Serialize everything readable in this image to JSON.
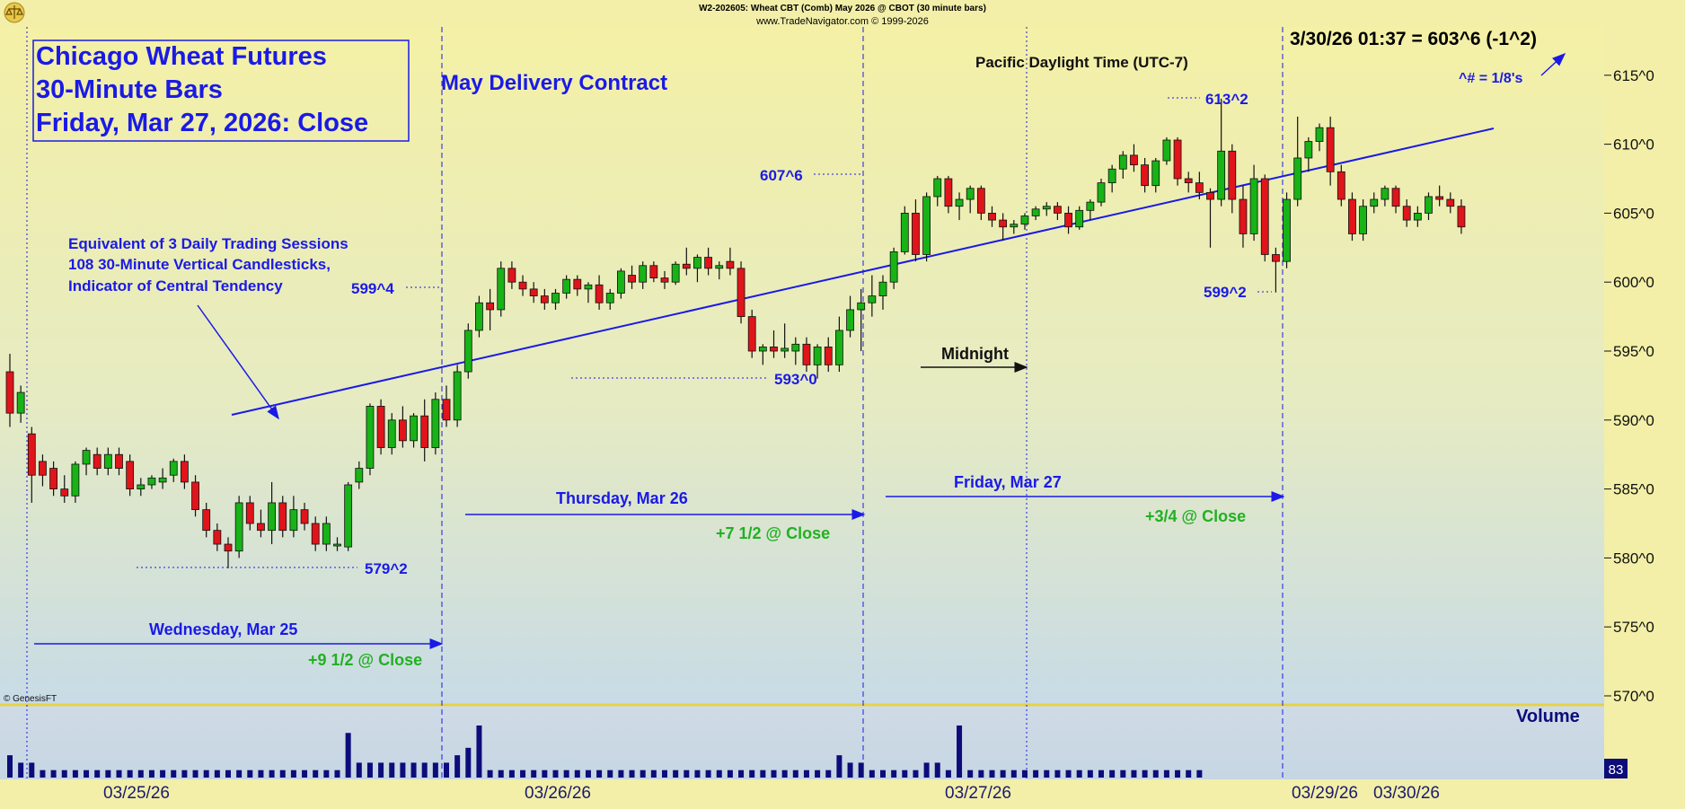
{
  "header": {
    "line1": "W2-202605:  Wheat CBT (Comb) May 2026 @ CBOT  (30 minute bars)",
    "line2": "www.TradeNavigator.com © 1999-2026",
    "quote": "3/30/26 01:37 = 603^6 (-1^2)",
    "fraction_note": "^# = 1/8's",
    "genesis": "© GenesisFT",
    "volume_label": "Volume",
    "volume_last": "83"
  },
  "title_box": {
    "line1": "Chicago Wheat Futures",
    "line2": "30-Minute Bars",
    "line3": "Friday, Mar 27, 2026: Close"
  },
  "annotations": {
    "contract": "May Delivery Contract",
    "timezone": "Pacific Daylight Time (UTC-7)",
    "midnight": "Midnight",
    "sessions1": "Equivalent of 3 Daily Trading Sessions",
    "sessions2": "108 30-Minute Vertical Candlesticks,",
    "sessions3": "Indicator of Central Tendency",
    "day_wed": "Wednesday, Mar 25",
    "day_thu": "Thursday, Mar 26",
    "day_fri": "Friday, Mar 27",
    "close_wed": "+9 1/2 @ Close",
    "close_thu": "+7 1/2 @ Close",
    "close_fri": "+3/4 @ Close",
    "lvl_5792": "579^2",
    "lvl_5994": "599^4",
    "lvl_5930": "593^0",
    "lvl_6076": "607^6",
    "lvl_6132": "613^2",
    "lvl_5992": "599^2"
  },
  "colors": {
    "up": "#17b317",
    "down": "#e0141a",
    "ink": "#1a1ae6",
    "green_text": "#22b022",
    "volume": "#0c0c7a",
    "bg_top": "#f3efa8",
    "bg_bottom": "#c7dbe8"
  },
  "chart_data": {
    "type": "candlestick",
    "y_ticks": [
      "570^0",
      "575^0",
      "580^0",
      "585^0",
      "590^0",
      "595^0",
      "600^0",
      "605^0",
      "610^0",
      "615^0"
    ],
    "ylim": [
      568,
      618
    ],
    "x_ticks": [
      "03/25/26",
      "03/26/26",
      "03/27/26",
      "03/29/26",
      "03/30/26"
    ],
    "trendline": [
      [
        0,
        590.0
      ],
      [
        108,
        611.0
      ]
    ],
    "candles": [
      {
        "o": 593.5,
        "h": 594.8,
        "l": 589.5,
        "c": 590.5
      },
      {
        "o": 590.5,
        "h": 592.5,
        "l": 589.8,
        "c": 592.0
      },
      {
        "o": 589.0,
        "h": 589.5,
        "l": 584.0,
        "c": 586.0
      },
      {
        "o": 587.0,
        "h": 587.5,
        "l": 585.2,
        "c": 586.0
      },
      {
        "o": 586.5,
        "h": 587.0,
        "l": 584.5,
        "c": 585.0
      },
      {
        "o": 585.0,
        "h": 586.0,
        "l": 584.0,
        "c": 584.5
      },
      {
        "o": 584.5,
        "h": 587.0,
        "l": 584.0,
        "c": 586.8
      },
      {
        "o": 586.8,
        "h": 588.0,
        "l": 586.0,
        "c": 587.8
      },
      {
        "o": 587.5,
        "h": 588.0,
        "l": 586.0,
        "c": 586.5
      },
      {
        "o": 586.5,
        "h": 588.0,
        "l": 586.0,
        "c": 587.5
      },
      {
        "o": 587.5,
        "h": 588.0,
        "l": 586.0,
        "c": 586.5
      },
      {
        "o": 587.0,
        "h": 587.5,
        "l": 584.5,
        "c": 585.0
      },
      {
        "o": 585.0,
        "h": 585.8,
        "l": 584.5,
        "c": 585.3
      },
      {
        "o": 585.3,
        "h": 586.0,
        "l": 585.0,
        "c": 585.8
      },
      {
        "o": 585.5,
        "h": 586.5,
        "l": 585.0,
        "c": 585.8
      },
      {
        "o": 586.0,
        "h": 587.2,
        "l": 585.5,
        "c": 587.0
      },
      {
        "o": 587.0,
        "h": 587.5,
        "l": 585.0,
        "c": 585.5
      },
      {
        "o": 585.5,
        "h": 586.0,
        "l": 583.0,
        "c": 583.5
      },
      {
        "o": 583.5,
        "h": 584.0,
        "l": 581.5,
        "c": 582.0
      },
      {
        "o": 582.0,
        "h": 582.5,
        "l": 580.5,
        "c": 581.0
      },
      {
        "o": 581.0,
        "h": 581.5,
        "l": 579.25,
        "c": 580.5
      },
      {
        "o": 580.5,
        "h": 584.5,
        "l": 580.0,
        "c": 584.0
      },
      {
        "o": 584.0,
        "h": 584.5,
        "l": 582.0,
        "c": 582.5
      },
      {
        "o": 582.5,
        "h": 583.5,
        "l": 581.5,
        "c": 582.0
      },
      {
        "o": 582.0,
        "h": 585.5,
        "l": 581.0,
        "c": 584.0
      },
      {
        "o": 584.0,
        "h": 584.5,
        "l": 581.5,
        "c": 582.0
      },
      {
        "o": 582.0,
        "h": 584.5,
        "l": 581.5,
        "c": 583.5
      },
      {
        "o": 583.5,
        "h": 584.0,
        "l": 582.0,
        "c": 582.5
      },
      {
        "o": 582.5,
        "h": 583.0,
        "l": 580.5,
        "c": 581.0
      },
      {
        "o": 581.0,
        "h": 583.0,
        "l": 580.5,
        "c": 582.5
      },
      {
        "o": 581.0,
        "h": 581.5,
        "l": 580.5,
        "c": 581.0
      },
      {
        "o": 580.8,
        "h": 585.5,
        "l": 580.5,
        "c": 585.3
      },
      {
        "o": 585.5,
        "h": 587.0,
        "l": 585.0,
        "c": 586.5
      },
      {
        "o": 586.5,
        "h": 591.2,
        "l": 586.0,
        "c": 591.0
      },
      {
        "o": 591.0,
        "h": 591.5,
        "l": 587.5,
        "c": 588.0
      },
      {
        "o": 588.0,
        "h": 590.5,
        "l": 587.5,
        "c": 590.0
      },
      {
        "o": 590.0,
        "h": 591.0,
        "l": 588.0,
        "c": 588.5
      },
      {
        "o": 588.5,
        "h": 590.5,
        "l": 588.0,
        "c": 590.3
      },
      {
        "o": 590.3,
        "h": 591.5,
        "l": 587.0,
        "c": 588.0
      },
      {
        "o": 588.0,
        "h": 592.0,
        "l": 587.5,
        "c": 591.5
      },
      {
        "o": 591.5,
        "h": 592.5,
        "l": 589.5,
        "c": 590.0
      },
      {
        "o": 590.0,
        "h": 594.0,
        "l": 589.5,
        "c": 593.5
      },
      {
        "o": 593.5,
        "h": 597.0,
        "l": 593.0,
        "c": 596.5
      },
      {
        "o": 596.5,
        "h": 599.0,
        "l": 596.0,
        "c": 598.5
      },
      {
        "o": 598.5,
        "h": 599.5,
        "l": 596.5,
        "c": 598.0
      },
      {
        "o": 598.0,
        "h": 601.5,
        "l": 597.5,
        "c": 601.0
      },
      {
        "o": 601.0,
        "h": 601.5,
        "l": 599.5,
        "c": 600.0
      },
      {
        "o": 600.0,
        "h": 600.5,
        "l": 599.0,
        "c": 599.5
      },
      {
        "o": 599.5,
        "h": 600.0,
        "l": 598.5,
        "c": 599.0
      },
      {
        "o": 599.0,
        "h": 599.5,
        "l": 598.0,
        "c": 598.5
      },
      {
        "o": 598.5,
        "h": 599.5,
        "l": 598.0,
        "c": 599.2
      },
      {
        "o": 599.2,
        "h": 600.5,
        "l": 598.8,
        "c": 600.2
      },
      {
        "o": 600.2,
        "h": 600.5,
        "l": 599.0,
        "c": 599.5
      },
      {
        "o": 599.5,
        "h": 600.0,
        "l": 598.5,
        "c": 599.8
      },
      {
        "o": 599.8,
        "h": 600.5,
        "l": 598.0,
        "c": 598.5
      },
      {
        "o": 598.5,
        "h": 599.5,
        "l": 598.0,
        "c": 599.2
      },
      {
        "o": 599.2,
        "h": 601.0,
        "l": 598.8,
        "c": 600.8
      },
      {
        "o": 600.5,
        "h": 601.2,
        "l": 599.5,
        "c": 600.0
      },
      {
        "o": 600.0,
        "h": 601.5,
        "l": 599.5,
        "c": 601.2
      },
      {
        "o": 601.2,
        "h": 601.5,
        "l": 600.0,
        "c": 600.3
      },
      {
        "o": 600.3,
        "h": 600.8,
        "l": 599.5,
        "c": 600.0
      },
      {
        "o": 600.0,
        "h": 601.5,
        "l": 599.8,
        "c": 601.3
      },
      {
        "o": 601.3,
        "h": 602.5,
        "l": 600.5,
        "c": 601.0
      },
      {
        "o": 601.0,
        "h": 602.0,
        "l": 600.0,
        "c": 601.8
      },
      {
        "o": 601.8,
        "h": 602.5,
        "l": 600.5,
        "c": 601.0
      },
      {
        "o": 601.0,
        "h": 601.5,
        "l": 600.2,
        "c": 601.2
      },
      {
        "o": 601.5,
        "h": 602.5,
        "l": 600.5,
        "c": 601.0
      },
      {
        "o": 601.0,
        "h": 601.5,
        "l": 597.0,
        "c": 597.5
      },
      {
        "o": 597.5,
        "h": 598.0,
        "l": 594.5,
        "c": 595.0
      },
      {
        "o": 595.0,
        "h": 595.5,
        "l": 594.0,
        "c": 595.3
      },
      {
        "o": 595.3,
        "h": 596.5,
        "l": 594.5,
        "c": 595.0
      },
      {
        "o": 595.0,
        "h": 597.0,
        "l": 594.5,
        "c": 595.2
      },
      {
        "o": 595.0,
        "h": 596.0,
        "l": 594.0,
        "c": 595.5
      },
      {
        "o": 595.5,
        "h": 596.0,
        "l": 593.5,
        "c": 594.0
      },
      {
        "o": 594.0,
        "h": 595.5,
        "l": 593.0,
        "c": 595.3
      },
      {
        "o": 595.3,
        "h": 596.0,
        "l": 593.5,
        "c": 594.0
      },
      {
        "o": 594.0,
        "h": 597.5,
        "l": 593.5,
        "c": 596.5
      },
      {
        "o": 596.5,
        "h": 599.0,
        "l": 596.0,
        "c": 598.0
      },
      {
        "o": 598.0,
        "h": 599.5,
        "l": 595.0,
        "c": 598.5
      },
      {
        "o": 598.5,
        "h": 600.5,
        "l": 597.5,
        "c": 599.0
      },
      {
        "o": 599.0,
        "h": 600.5,
        "l": 598.0,
        "c": 600.0
      },
      {
        "o": 600.0,
        "h": 602.5,
        "l": 599.5,
        "c": 602.2
      },
      {
        "o": 602.2,
        "h": 605.5,
        "l": 602.0,
        "c": 605.0
      },
      {
        "o": 605.0,
        "h": 606.0,
        "l": 601.5,
        "c": 602.0
      },
      {
        "o": 602.0,
        "h": 606.5,
        "l": 601.5,
        "c": 606.2
      },
      {
        "o": 606.2,
        "h": 607.7,
        "l": 605.5,
        "c": 607.5
      },
      {
        "o": 607.5,
        "h": 607.7,
        "l": 605.0,
        "c": 605.5
      },
      {
        "o": 605.5,
        "h": 606.5,
        "l": 604.5,
        "c": 606.0
      },
      {
        "o": 606.0,
        "h": 607.0,
        "l": 605.0,
        "c": 606.8
      },
      {
        "o": 606.8,
        "h": 607.0,
        "l": 604.5,
        "c": 605.0
      },
      {
        "o": 605.0,
        "h": 605.5,
        "l": 604.0,
        "c": 604.5
      },
      {
        "o": 604.5,
        "h": 605.0,
        "l": 603.0,
        "c": 604.0
      },
      {
        "o": 604.0,
        "h": 604.5,
        "l": 603.5,
        "c": 604.2
      },
      {
        "o": 604.2,
        "h": 605.0,
        "l": 603.8,
        "c": 604.8
      },
      {
        "o": 604.8,
        "h": 605.5,
        "l": 604.5,
        "c": 605.3
      },
      {
        "o": 605.3,
        "h": 605.8,
        "l": 604.8,
        "c": 605.5
      },
      {
        "o": 605.5,
        "h": 605.8,
        "l": 604.5,
        "c": 605.0
      },
      {
        "o": 605.0,
        "h": 605.5,
        "l": 603.5,
        "c": 604.0
      },
      {
        "o": 604.0,
        "h": 605.5,
        "l": 603.8,
        "c": 605.2
      },
      {
        "o": 605.2,
        "h": 606.0,
        "l": 604.5,
        "c": 605.8
      },
      {
        "o": 605.8,
        "h": 607.5,
        "l": 605.5,
        "c": 607.2
      },
      {
        "o": 607.2,
        "h": 608.5,
        "l": 606.5,
        "c": 608.2
      },
      {
        "o": 608.2,
        "h": 609.5,
        "l": 607.5,
        "c": 609.2
      },
      {
        "o": 609.2,
        "h": 610.0,
        "l": 608.0,
        "c": 608.5
      },
      {
        "o": 608.5,
        "h": 609.0,
        "l": 606.5,
        "c": 607.0
      },
      {
        "o": 607.0,
        "h": 609.0,
        "l": 606.5,
        "c": 608.8
      },
      {
        "o": 608.8,
        "h": 610.5,
        "l": 608.5,
        "c": 610.3
      },
      {
        "o": 610.3,
        "h": 610.5,
        "l": 607.0,
        "c": 607.5
      },
      {
        "o": 607.5,
        "h": 608.0,
        "l": 606.5,
        "c": 607.2
      },
      {
        "o": 607.2,
        "h": 608.0,
        "l": 606.0,
        "c": 606.5
      },
      {
        "o": 606.5,
        "h": 606.8,
        "l": 602.5,
        "c": 606.0
      },
      {
        "o": 606.0,
        "h": 613.3,
        "l": 605.5,
        "c": 609.5
      },
      {
        "o": 609.5,
        "h": 610.0,
        "l": 605.0,
        "c": 606.0
      },
      {
        "o": 606.0,
        "h": 607.0,
        "l": 602.5,
        "c": 603.5
      },
      {
        "o": 603.5,
        "h": 608.5,
        "l": 603.0,
        "c": 607.5
      },
      {
        "o": 607.5,
        "h": 607.8,
        "l": 601.5,
        "c": 602.0
      },
      {
        "o": 602.0,
        "h": 602.5,
        "l": 599.25,
        "c": 601.5
      },
      {
        "o": 601.5,
        "h": 606.5,
        "l": 601.0,
        "c": 606.0
      },
      {
        "o": 606.0,
        "h": 612.0,
        "l": 605.5,
        "c": 609.0
      },
      {
        "o": 609.0,
        "h": 610.5,
        "l": 608.0,
        "c": 610.2
      },
      {
        "o": 610.2,
        "h": 611.5,
        "l": 609.5,
        "c": 611.2
      },
      {
        "o": 611.2,
        "h": 612.0,
        "l": 607.0,
        "c": 608.0
      },
      {
        "o": 608.0,
        "h": 608.5,
        "l": 605.5,
        "c": 606.0
      },
      {
        "o": 606.0,
        "h": 606.5,
        "l": 603.0,
        "c": 603.5
      },
      {
        "o": 603.5,
        "h": 606.0,
        "l": 603.0,
        "c": 605.5
      },
      {
        "o": 605.5,
        "h": 606.5,
        "l": 605.0,
        "c": 606.0
      },
      {
        "o": 606.0,
        "h": 607.0,
        "l": 605.5,
        "c": 606.8
      },
      {
        "o": 606.8,
        "h": 607.0,
        "l": 605.0,
        "c": 605.5
      },
      {
        "o": 605.5,
        "h": 606.0,
        "l": 604.0,
        "c": 604.5
      },
      {
        "o": 604.5,
        "h": 605.5,
        "l": 604.0,
        "c": 605.0
      },
      {
        "o": 605.0,
        "h": 606.5,
        "l": 604.5,
        "c": 606.2
      },
      {
        "o": 606.2,
        "h": 607.0,
        "l": 605.5,
        "c": 606.0
      },
      {
        "o": 606.0,
        "h": 606.5,
        "l": 605.0,
        "c": 605.5
      },
      {
        "o": 605.5,
        "h": 606.0,
        "l": 603.5,
        "c": 604.0
      }
    ],
    "volume": [
      3,
      2,
      2,
      1,
      1,
      1,
      1,
      1,
      1,
      1,
      1,
      1,
      1,
      1,
      1,
      1,
      1,
      1,
      1,
      1,
      1,
      1,
      1,
      1,
      1,
      1,
      1,
      1,
      1,
      1,
      1,
      6,
      2,
      2,
      2,
      2,
      2,
      2,
      2,
      2,
      2,
      3,
      4,
      7,
      1,
      1,
      1,
      1,
      1,
      1,
      1,
      1,
      1,
      1,
      1,
      1,
      1,
      1,
      1,
      1,
      1,
      1,
      1,
      1,
      1,
      1,
      1,
      1,
      1,
      1,
      1,
      1,
      1,
      1,
      1,
      1,
      3,
      2,
      2,
      1,
      1,
      1,
      1,
      1,
      2,
      2,
      1,
      7,
      1,
      1,
      1,
      1,
      1,
      1,
      1,
      1,
      1,
      1,
      1,
      1,
      1,
      1,
      1,
      1,
      1,
      1,
      1,
      1,
      1,
      1
    ]
  }
}
